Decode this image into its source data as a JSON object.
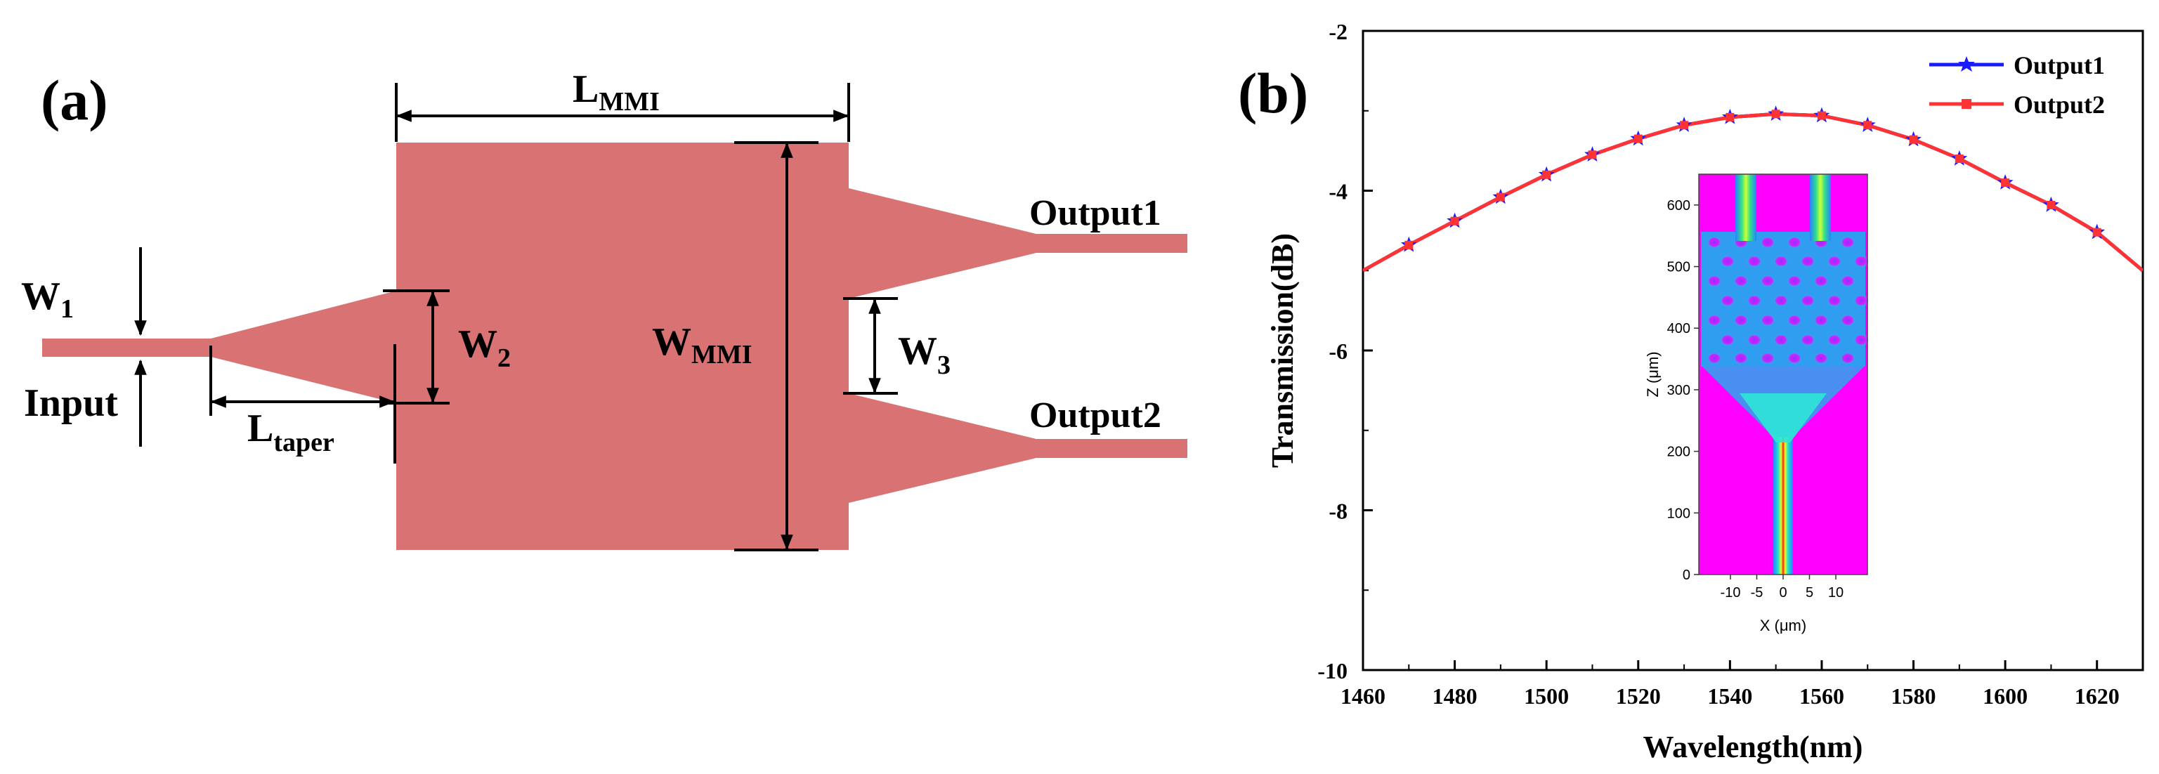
{
  "panel_a": {
    "label": "(a)",
    "color_waveguide": "#D97272",
    "labels": {
      "w1_main": "W",
      "w1_sub": "1",
      "input": "Input",
      "w2_main": "W",
      "w2_sub": "2",
      "ltaper_main": "L",
      "ltaper_sub": "taper",
      "lmmi_main": "L",
      "lmmi_sub": "MMI",
      "wmmi_main": "W",
      "wmmi_sub": "MMI",
      "w3_main": "W",
      "w3_sub": "3",
      "output1": "Output1",
      "output2": "Output2"
    }
  },
  "panel_b": {
    "label": "(b)",
    "inset": {
      "ylabel": "Z (μm)",
      "xlabel": "X (μm)",
      "yticks": [
        "0",
        "100",
        "200",
        "300",
        "400",
        "500",
        "600"
      ],
      "xticks": [
        "-10",
        "-5",
        "0",
        "5",
        "10"
      ]
    }
  },
  "chart_data": {
    "type": "line",
    "title": "",
    "xlabel": "Wavelength(nm)",
    "ylabel": "Transmission(dB)",
    "xlim": [
      1460,
      1630
    ],
    "ylim": [
      -10,
      -2
    ],
    "xticks": [
      1460,
      1480,
      1500,
      1520,
      1540,
      1560,
      1580,
      1600,
      1620
    ],
    "yticks": [
      -10,
      -8,
      -6,
      -4,
      -2
    ],
    "legend_position": "top-right",
    "curve_x": [
      1460,
      1470,
      1480,
      1490,
      1500,
      1510,
      1520,
      1530,
      1540,
      1550,
      1560,
      1570,
      1580,
      1590,
      1600,
      1610,
      1620,
      1630
    ],
    "curve_y": [
      -5.0,
      -4.68,
      -4.38,
      -4.08,
      -3.8,
      -3.55,
      -3.35,
      -3.18,
      -3.08,
      -3.04,
      -3.06,
      -3.18,
      -3.36,
      -3.6,
      -3.9,
      -4.18,
      -4.52,
      -5.0
    ],
    "marker_x": [
      1470,
      1480,
      1490,
      1500,
      1510,
      1520,
      1530,
      1540,
      1550,
      1560,
      1570,
      1580,
      1590,
      1600,
      1610,
      1620
    ],
    "series": [
      {
        "name": "Output1",
        "color": "#1a1aff",
        "marker": "star",
        "values": [
          -4.68,
          -4.38,
          -4.08,
          -3.8,
          -3.55,
          -3.35,
          -3.18,
          -3.08,
          -3.04,
          -3.06,
          -3.18,
          -3.36,
          -3.6,
          -3.9,
          -4.18,
          -4.52
        ]
      },
      {
        "name": "Output2",
        "color": "#ff3333",
        "marker": "square",
        "values": [
          -4.68,
          -4.38,
          -4.08,
          -3.8,
          -3.55,
          -3.35,
          -3.18,
          -3.08,
          -3.04,
          -3.06,
          -3.18,
          -3.36,
          -3.6,
          -3.9,
          -4.18,
          -4.52
        ]
      }
    ]
  }
}
